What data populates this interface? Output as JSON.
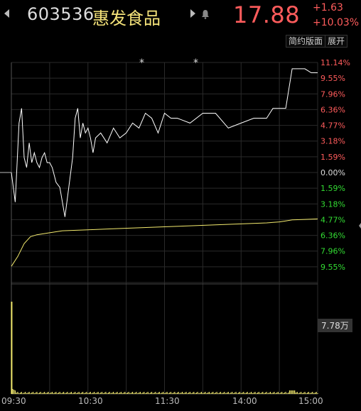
{
  "header": {
    "code": "603536",
    "name": "惠发食品",
    "price": "17.88",
    "change": "+1.63",
    "change_pct": "+10.03%"
  },
  "toolbar": {
    "brief_label": "简约版面",
    "expand_label": "展开"
  },
  "volume_label": "7.78万",
  "markers": [
    "*",
    "*"
  ],
  "colors": {
    "up": "#ff5c5c",
    "down": "#33dd33",
    "price_line": "#ffffff",
    "avg_line": "#f3ea6e",
    "volume": "#f3ea6e",
    "grid": "#2a2a2a"
  },
  "chart_data": {
    "type": "line",
    "time_labels": [
      "09:30",
      "10:30",
      "11:30",
      "14:00",
      "15:00"
    ],
    "y_labels_up": [
      "11.14%",
      "9.55%",
      "7.96%",
      "6.36%",
      "4.77%",
      "3.18%",
      "1.59%"
    ],
    "y_label_zero": "0.00%",
    "y_labels_down": [
      "1.59%",
      "3.18%",
      "4.77%",
      "6.36%",
      "7.96%",
      "9.55%"
    ],
    "ylim": [
      -11.14,
      11.14
    ],
    "series": [
      {
        "minutes": [
          0,
          3,
          6,
          8,
          10,
          12,
          14,
          16,
          18,
          20,
          22,
          24,
          26,
          28,
          30,
          32,
          35,
          38,
          40,
          42,
          45,
          48,
          50,
          52,
          54,
          56,
          58,
          60,
          62,
          64,
          66,
          70,
          75,
          80,
          85,
          90,
          95,
          100,
          105,
          110,
          115,
          120,
          125,
          130,
          140,
          150,
          160,
          170,
          180,
          190,
          200,
          205,
          210,
          215,
          220,
          225,
          230,
          235,
          238,
          240
        ],
        "values": [
          0,
          -3,
          5,
          6.5,
          1.5,
          0.5,
          3,
          1,
          2,
          1,
          0.5,
          1.5,
          2,
          1,
          1,
          0.5,
          -1,
          -1.5,
          -3,
          -4.5,
          -1.5,
          1.5,
          5.5,
          6.5,
          3.5,
          5,
          4,
          4.5,
          3.5,
          2,
          3.5,
          4,
          3,
          4.5,
          3.5,
          4,
          5,
          4.5,
          6,
          5.5,
          4,
          6,
          5.5,
          5.5,
          5,
          6,
          6,
          4.5,
          5,
          5.5,
          5.5,
          6.5,
          6.5,
          6.5,
          10.5,
          10.5,
          10.5,
          10.1,
          10.1,
          10.1
        ]
      },
      {
        "minutes": [
          0,
          5,
          10,
          15,
          20,
          30,
          40,
          60,
          80,
          100,
          120,
          140,
          160,
          180,
          200,
          210,
          215,
          220,
          230,
          240
        ],
        "values": [
          -9.5,
          -8.5,
          -7.2,
          -6.5,
          -6.3,
          -6.1,
          -5.9,
          -5.8,
          -5.7,
          -5.6,
          -5.5,
          -5.4,
          -5.3,
          -5.2,
          -5.1,
          -5.0,
          -4.9,
          -4.8,
          -4.75,
          -4.7
        ]
      }
    ]
  }
}
